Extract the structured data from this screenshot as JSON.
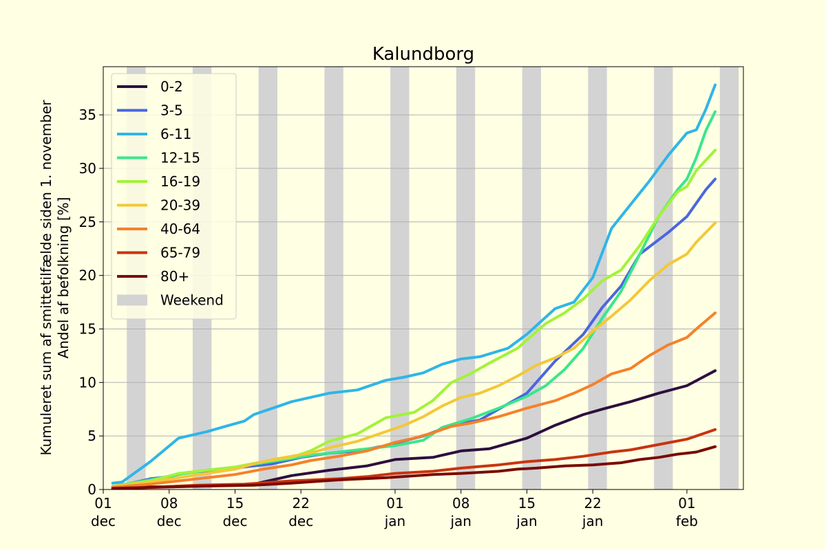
{
  "chart_data": {
    "type": "line",
    "title": "Kalundborg",
    "ylabel_line1": "Kumuleret sum af smittetilfælde siden 1. november",
    "ylabel_line2": "Andel af befolkning [%]",
    "xlabel": "",
    "ylim": [
      0,
      39.5
    ],
    "yticks": [
      0,
      5,
      10,
      15,
      20,
      25,
      30,
      35
    ],
    "x_start": "2020-12-01",
    "x_end": "2021-02-05",
    "x_range_days": [
      0,
      68
    ],
    "xticks": [
      {
        "day": 0,
        "line1": "01",
        "line2": "dec"
      },
      {
        "day": 7,
        "line1": "08",
        "line2": "dec"
      },
      {
        "day": 14,
        "line1": "15",
        "line2": "dec"
      },
      {
        "day": 21,
        "line1": "22",
        "line2": "dec"
      },
      {
        "day": 31,
        "line1": "01",
        "line2": "jan"
      },
      {
        "day": 38,
        "line1": "08",
        "line2": "jan"
      },
      {
        "day": 45,
        "line1": "15",
        "line2": "jan"
      },
      {
        "day": 52,
        "line1": "22",
        "line2": "jan"
      },
      {
        "day": 62,
        "line1": "01",
        "line2": "feb"
      }
    ],
    "weekend_start_days": [
      2.5,
      9.5,
      16.5,
      23.5,
      30.5,
      37.5,
      44.5,
      51.5,
      58.5,
      65.5
    ],
    "weekend_color": "#d3d3d3",
    "grid": "horizontal",
    "legend_placement": "top-left",
    "legend_weekend_label": "Weekend",
    "series": [
      {
        "name": "0-2",
        "color": "#2d0f3d",
        "points": [
          [
            1,
            0.2
          ],
          [
            10,
            0.3
          ],
          [
            16,
            0.5
          ],
          [
            20,
            1.3
          ],
          [
            24,
            1.8
          ],
          [
            28,
            2.2
          ],
          [
            31,
            2.8
          ],
          [
            35,
            3.0
          ],
          [
            38,
            3.6
          ],
          [
            41,
            3.8
          ],
          [
            45,
            4.8
          ],
          [
            48,
            6.0
          ],
          [
            51,
            7.0
          ],
          [
            53,
            7.5
          ],
          [
            56,
            8.2
          ],
          [
            59,
            9.0
          ],
          [
            62,
            9.7
          ],
          [
            65,
            11.1
          ]
        ]
      },
      {
        "name": "3-5",
        "color": "#4a66e0",
        "points": [
          [
            1,
            0.3
          ],
          [
            3,
            0.6
          ],
          [
            5,
            1.0
          ],
          [
            7,
            1.2
          ],
          [
            9,
            1.6
          ],
          [
            12,
            1.8
          ],
          [
            15,
            2.1
          ],
          [
            18,
            2.4
          ],
          [
            21,
            3.0
          ],
          [
            24,
            3.4
          ],
          [
            27,
            3.6
          ],
          [
            30,
            4.1
          ],
          [
            34,
            5.0
          ],
          [
            37,
            6.0
          ],
          [
            40,
            6.5
          ],
          [
            43,
            8.0
          ],
          [
            45,
            9.0
          ],
          [
            48,
            12.0
          ],
          [
            51,
            14.5
          ],
          [
            53,
            17.0
          ],
          [
            55,
            19.0
          ],
          [
            57,
            22.0
          ],
          [
            60,
            24.0
          ],
          [
            62,
            25.5
          ],
          [
            64,
            28.0
          ],
          [
            65,
            29.0
          ]
        ]
      },
      {
        "name": "6-11",
        "color": "#2fb5e8",
        "points": [
          [
            1,
            0.6
          ],
          [
            2,
            0.7
          ],
          [
            5,
            2.6
          ],
          [
            8,
            4.8
          ],
          [
            11,
            5.4
          ],
          [
            13,
            5.9
          ],
          [
            15,
            6.4
          ],
          [
            16,
            7.0
          ],
          [
            18,
            7.6
          ],
          [
            20,
            8.2
          ],
          [
            22,
            8.6
          ],
          [
            24,
            9.0
          ],
          [
            27,
            9.3
          ],
          [
            30,
            10.2
          ],
          [
            32,
            10.5
          ],
          [
            34,
            10.9
          ],
          [
            36,
            11.7
          ],
          [
            38,
            12.2
          ],
          [
            40,
            12.4
          ],
          [
            43,
            13.2
          ],
          [
            45,
            14.5
          ],
          [
            48,
            16.9
          ],
          [
            50,
            17.5
          ],
          [
            52,
            19.8
          ],
          [
            54,
            24.4
          ],
          [
            56,
            26.6
          ],
          [
            58,
            28.8
          ],
          [
            60,
            31.2
          ],
          [
            62,
            33.3
          ],
          [
            63,
            33.6
          ],
          [
            64,
            35.5
          ],
          [
            65,
            37.8
          ]
        ]
      },
      {
        "name": "12-15",
        "color": "#3ae68c",
        "points": [
          [
            1,
            0.3
          ],
          [
            5,
            0.9
          ],
          [
            8,
            1.4
          ],
          [
            11,
            1.8
          ],
          [
            14,
            2.1
          ],
          [
            17,
            2.5
          ],
          [
            20,
            2.9
          ],
          [
            22,
            3.2
          ],
          [
            25,
            3.5
          ],
          [
            28,
            3.8
          ],
          [
            31,
            4.1
          ],
          [
            34,
            4.6
          ],
          [
            36,
            5.8
          ],
          [
            39,
            6.6
          ],
          [
            42,
            7.6
          ],
          [
            45,
            8.7
          ],
          [
            47,
            9.7
          ],
          [
            49,
            11.2
          ],
          [
            51,
            13.2
          ],
          [
            53,
            16.0
          ],
          [
            55,
            18.5
          ],
          [
            57,
            22.0
          ],
          [
            59,
            25.5
          ],
          [
            61,
            28.0
          ],
          [
            62,
            29.0
          ],
          [
            63,
            31.0
          ],
          [
            64,
            33.5
          ],
          [
            65,
            35.3
          ]
        ]
      },
      {
        "name": "16-19",
        "color": "#a3f23a",
        "points": [
          [
            1,
            0.3
          ],
          [
            5,
            0.8
          ],
          [
            8,
            1.5
          ],
          [
            11,
            1.8
          ],
          [
            14,
            2.1
          ],
          [
            17,
            2.6
          ],
          [
            20,
            3.0
          ],
          [
            22,
            3.6
          ],
          [
            24,
            4.5
          ],
          [
            27,
            5.2
          ],
          [
            30,
            6.7
          ],
          [
            33,
            7.2
          ],
          [
            35,
            8.3
          ],
          [
            37,
            10.0
          ],
          [
            39,
            10.8
          ],
          [
            41,
            11.8
          ],
          [
            44,
            13.2
          ],
          [
            47,
            15.5
          ],
          [
            49,
            16.5
          ],
          [
            51,
            17.8
          ],
          [
            53,
            19.5
          ],
          [
            55,
            20.5
          ],
          [
            57,
            22.8
          ],
          [
            59,
            25.5
          ],
          [
            61,
            27.8
          ],
          [
            62,
            28.3
          ],
          [
            63,
            29.8
          ],
          [
            65,
            31.7
          ]
        ]
      },
      {
        "name": "20-39",
        "color": "#f2c83a",
        "points": [
          [
            1,
            0.3
          ],
          [
            5,
            0.7
          ],
          [
            8,
            1.1
          ],
          [
            11,
            1.5
          ],
          [
            14,
            1.9
          ],
          [
            16,
            2.4
          ],
          [
            18,
            2.8
          ],
          [
            20,
            3.1
          ],
          [
            22,
            3.4
          ],
          [
            24,
            3.9
          ],
          [
            27,
            4.5
          ],
          [
            30,
            5.4
          ],
          [
            32,
            6.0
          ],
          [
            34,
            6.8
          ],
          [
            36,
            7.8
          ],
          [
            38,
            8.6
          ],
          [
            40,
            9.0
          ],
          [
            42,
            9.7
          ],
          [
            44,
            10.6
          ],
          [
            46,
            11.6
          ],
          [
            48,
            12.3
          ],
          [
            50,
            13.2
          ],
          [
            52,
            14.8
          ],
          [
            54,
            16.2
          ],
          [
            56,
            17.7
          ],
          [
            58,
            19.5
          ],
          [
            60,
            21.0
          ],
          [
            62,
            22.0
          ],
          [
            63,
            23.1
          ],
          [
            65,
            24.9
          ]
        ]
      },
      {
        "name": "40-64",
        "color": "#f5812a",
        "points": [
          [
            1,
            0.2
          ],
          [
            5,
            0.5
          ],
          [
            8,
            0.8
          ],
          [
            11,
            1.1
          ],
          [
            14,
            1.4
          ],
          [
            17,
            1.9
          ],
          [
            20,
            2.3
          ],
          [
            22,
            2.7
          ],
          [
            25,
            3.1
          ],
          [
            28,
            3.6
          ],
          [
            31,
            4.4
          ],
          [
            33,
            4.8
          ],
          [
            35,
            5.3
          ],
          [
            37,
            5.9
          ],
          [
            39,
            6.2
          ],
          [
            42,
            6.8
          ],
          [
            45,
            7.6
          ],
          [
            48,
            8.3
          ],
          [
            50,
            9.0
          ],
          [
            52,
            9.8
          ],
          [
            54,
            10.8
          ],
          [
            56,
            11.3
          ],
          [
            58,
            12.5
          ],
          [
            60,
            13.5
          ],
          [
            62,
            14.2
          ],
          [
            63,
            15.0
          ],
          [
            65,
            16.5
          ]
        ]
      },
      {
        "name": "65-79",
        "color": "#c8340f",
        "points": [
          [
            1,
            0.1
          ],
          [
            5,
            0.2
          ],
          [
            10,
            0.4
          ],
          [
            15,
            0.5
          ],
          [
            20,
            0.8
          ],
          [
            25,
            1.0
          ],
          [
            28,
            1.2
          ],
          [
            31,
            1.5
          ],
          [
            35,
            1.7
          ],
          [
            38,
            2.0
          ],
          [
            42,
            2.3
          ],
          [
            45,
            2.6
          ],
          [
            48,
            2.8
          ],
          [
            51,
            3.1
          ],
          [
            54,
            3.5
          ],
          [
            56,
            3.7
          ],
          [
            59,
            4.2
          ],
          [
            62,
            4.7
          ],
          [
            63,
            5.0
          ],
          [
            65,
            5.6
          ]
        ]
      },
      {
        "name": "80+",
        "color": "#7a0a00",
        "points": [
          [
            1,
            0.1
          ],
          [
            10,
            0.3
          ],
          [
            16,
            0.4
          ],
          [
            20,
            0.6
          ],
          [
            25,
            0.9
          ],
          [
            30,
            1.1
          ],
          [
            35,
            1.4
          ],
          [
            38,
            1.5
          ],
          [
            42,
            1.7
          ],
          [
            44,
            1.9
          ],
          [
            46,
            2.0
          ],
          [
            49,
            2.2
          ],
          [
            52,
            2.3
          ],
          [
            55,
            2.5
          ],
          [
            57,
            2.8
          ],
          [
            59,
            3.0
          ],
          [
            61,
            3.3
          ],
          [
            62,
            3.4
          ],
          [
            63,
            3.5
          ],
          [
            65,
            4.0
          ]
        ]
      }
    ]
  }
}
